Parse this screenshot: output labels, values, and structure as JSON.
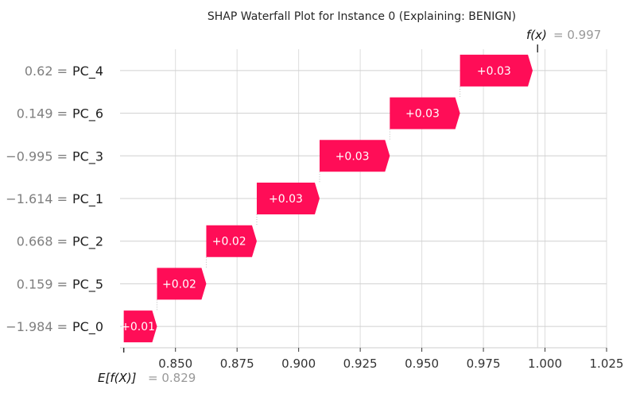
{
  "chart_data": {
    "type": "waterfall",
    "title": "SHAP Waterfall Plot for Instance 0 (Explaining: BENIGN)",
    "base_value": 0.829,
    "base_label": "E[f(X)]",
    "base_value_text": "= 0.829",
    "output_value": 0.997,
    "output_label": "f(x)",
    "output_value_text": "= 0.997",
    "xlim": [
      0.8275,
      1.025
    ],
    "xticks": [
      "0.850",
      "0.875",
      "0.900",
      "0.925",
      "0.950",
      "0.975",
      "1.000",
      "1.025"
    ],
    "xtick_values": [
      0.85,
      0.875,
      0.9,
      0.925,
      0.95,
      0.975,
      1.0,
      1.025
    ],
    "features": [
      {
        "value": "0.62 =",
        "name": "PC_4",
        "shap": 0.0295,
        "label": "+0.03"
      },
      {
        "value": "0.149 =",
        "name": "PC_6",
        "shap": 0.0285,
        "label": "+0.03"
      },
      {
        "value": "−0.995 =",
        "name": "PC_3",
        "shap": 0.0285,
        "label": "+0.03"
      },
      {
        "value": "−1.614 =",
        "name": "PC_1",
        "shap": 0.0255,
        "label": "+0.03"
      },
      {
        "value": "0.668 =",
        "name": "PC_2",
        "shap": 0.0205,
        "label": "+0.02"
      },
      {
        "value": "0.159 =",
        "name": "PC_5",
        "shap": 0.02,
        "label": "+0.02"
      },
      {
        "value": "−1.984 =",
        "name": "PC_0",
        "shap": 0.0135,
        "label": "+0.01"
      }
    ],
    "colors": {
      "positive": "#ff0d57",
      "grid": "#dddddd"
    }
  }
}
